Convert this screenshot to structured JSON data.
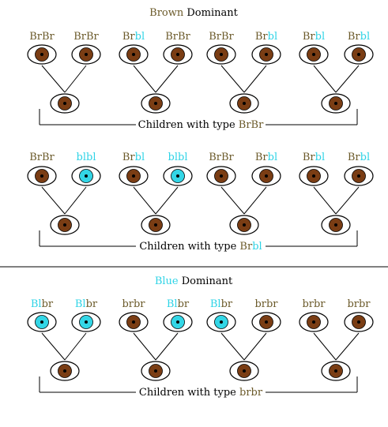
{
  "colors": {
    "brown": "#6b5a2a",
    "blue": "#2ed3e6",
    "ink": "#000000",
    "eye_brown": "#7a3d14",
    "eye_blue": "#33d6e6"
  },
  "sections": [
    {
      "title": {
        "parts": [
          {
            "text": "Brown",
            "color": "brown"
          },
          {
            "text": " Dominant",
            "color": "ink"
          }
        ]
      },
      "rows": [
        {
          "caption": {
            "parts": [
              {
                "text": "Children with type ",
                "color": "ink"
              },
              {
                "text": "BrBr",
                "color": "brown"
              }
            ]
          },
          "families": [
            {
              "parents": [
                {
                  "label": [
                    {
                      "text": "BrBr",
                      "color": "brown"
                    }
                  ],
                  "eye": "brown"
                },
                {
                  "label": [
                    {
                      "text": "BrBr",
                      "color": "brown"
                    }
                  ],
                  "eye": "brown"
                }
              ],
              "child": "brown"
            },
            {
              "parents": [
                {
                  "label": [
                    {
                      "text": "Br",
                      "color": "brown"
                    },
                    {
                      "text": "bl",
                      "color": "blue"
                    }
                  ],
                  "eye": "brown"
                },
                {
                  "label": [
                    {
                      "text": "BrBr",
                      "color": "brown"
                    }
                  ],
                  "eye": "brown"
                }
              ],
              "child": "brown"
            },
            {
              "parents": [
                {
                  "label": [
                    {
                      "text": "BrBr",
                      "color": "brown"
                    }
                  ],
                  "eye": "brown"
                },
                {
                  "label": [
                    {
                      "text": "Br",
                      "color": "brown"
                    },
                    {
                      "text": "bl",
                      "color": "blue"
                    }
                  ],
                  "eye": "brown"
                }
              ],
              "child": "brown"
            },
            {
              "parents": [
                {
                  "label": [
                    {
                      "text": "Br",
                      "color": "brown"
                    },
                    {
                      "text": "bl",
                      "color": "blue"
                    }
                  ],
                  "eye": "brown"
                },
                {
                  "label": [
                    {
                      "text": "Br",
                      "color": "brown"
                    },
                    {
                      "text": "bl",
                      "color": "blue"
                    }
                  ],
                  "eye": "brown"
                }
              ],
              "child": "brown"
            }
          ]
        },
        {
          "caption": {
            "parts": [
              {
                "text": "Children with type ",
                "color": "ink"
              },
              {
                "text": "Br",
                "color": "brown"
              },
              {
                "text": "bl",
                "color": "blue"
              }
            ]
          },
          "families": [
            {
              "parents": [
                {
                  "label": [
                    {
                      "text": "BrBr",
                      "color": "brown"
                    }
                  ],
                  "eye": "brown"
                },
                {
                  "label": [
                    {
                      "text": "blbl",
                      "color": "blue"
                    }
                  ],
                  "eye": "blue"
                }
              ],
              "child": "brown"
            },
            {
              "parents": [
                {
                  "label": [
                    {
                      "text": "Br",
                      "color": "brown"
                    },
                    {
                      "text": "bl",
                      "color": "blue"
                    }
                  ],
                  "eye": "brown"
                },
                {
                  "label": [
                    {
                      "text": "blbl",
                      "color": "blue"
                    }
                  ],
                  "eye": "blue"
                }
              ],
              "child": "brown"
            },
            {
              "parents": [
                {
                  "label": [
                    {
                      "text": "BrBr",
                      "color": "brown"
                    }
                  ],
                  "eye": "brown"
                },
                {
                  "label": [
                    {
                      "text": "Br",
                      "color": "brown"
                    },
                    {
                      "text": "bl",
                      "color": "blue"
                    }
                  ],
                  "eye": "brown"
                }
              ],
              "child": "brown"
            },
            {
              "parents": [
                {
                  "label": [
                    {
                      "text": "Br",
                      "color": "brown"
                    },
                    {
                      "text": "bl",
                      "color": "blue"
                    }
                  ],
                  "eye": "brown"
                },
                {
                  "label": [
                    {
                      "text": "Br",
                      "color": "brown"
                    },
                    {
                      "text": "bl",
                      "color": "blue"
                    }
                  ],
                  "eye": "brown"
                }
              ],
              "child": "brown"
            }
          ]
        }
      ]
    },
    {
      "title": {
        "parts": [
          {
            "text": "Blue",
            "color": "blue"
          },
          {
            "text": " Dominant",
            "color": "ink"
          }
        ]
      },
      "rows": [
        {
          "caption": {
            "parts": [
              {
                "text": "Children with type ",
                "color": "ink"
              },
              {
                "text": "brbr",
                "color": "brown"
              }
            ]
          },
          "families": [
            {
              "parents": [
                {
                  "label": [
                    {
                      "text": "Bl",
                      "color": "blue"
                    },
                    {
                      "text": "br",
                      "color": "brown"
                    }
                  ],
                  "eye": "blue"
                },
                {
                  "label": [
                    {
                      "text": "Bl",
                      "color": "blue"
                    },
                    {
                      "text": "br",
                      "color": "brown"
                    }
                  ],
                  "eye": "blue"
                }
              ],
              "child": "brown"
            },
            {
              "parents": [
                {
                  "label": [
                    {
                      "text": "brbr",
                      "color": "brown"
                    }
                  ],
                  "eye": "brown"
                },
                {
                  "label": [
                    {
                      "text": "Bl",
                      "color": "blue"
                    },
                    {
                      "text": "br",
                      "color": "brown"
                    }
                  ],
                  "eye": "blue"
                }
              ],
              "child": "brown"
            },
            {
              "parents": [
                {
                  "label": [
                    {
                      "text": "Bl",
                      "color": "blue"
                    },
                    {
                      "text": "br",
                      "color": "brown"
                    }
                  ],
                  "eye": "blue"
                },
                {
                  "label": [
                    {
                      "text": "brbr",
                      "color": "brown"
                    }
                  ],
                  "eye": "brown"
                }
              ],
              "child": "brown"
            },
            {
              "parents": [
                {
                  "label": [
                    {
                      "text": "brbr",
                      "color": "brown"
                    }
                  ],
                  "eye": "brown"
                },
                {
                  "label": [
                    {
                      "text": "brbr",
                      "color": "brown"
                    }
                  ],
                  "eye": "brown"
                }
              ],
              "child": "brown"
            }
          ]
        }
      ]
    }
  ]
}
